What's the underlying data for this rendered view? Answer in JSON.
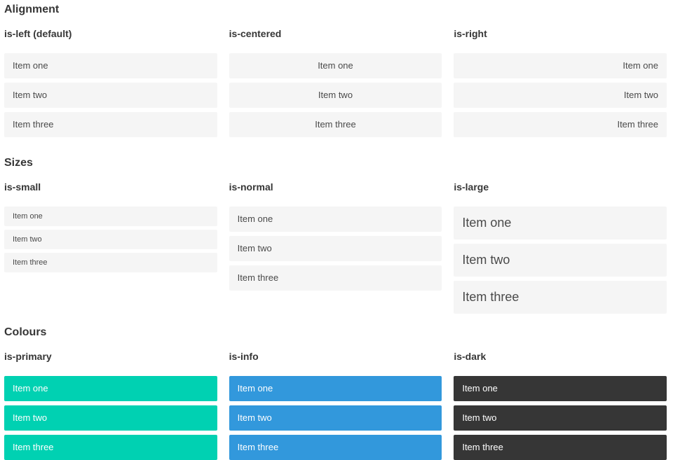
{
  "sections": [
    {
      "title": "Alignment",
      "columns": [
        {
          "heading": "is-left (default)",
          "items": [
            "Item one",
            "Item two",
            "Item three"
          ]
        },
        {
          "heading": "is-centered",
          "items": [
            "Item one",
            "Item two",
            "Item three"
          ]
        },
        {
          "heading": "is-right",
          "items": [
            "Item one",
            "Item two",
            "Item three"
          ]
        }
      ]
    },
    {
      "title": "Sizes",
      "columns": [
        {
          "heading": "is-small",
          "items": [
            "Item one",
            "Item two",
            "Item three"
          ]
        },
        {
          "heading": "is-normal",
          "items": [
            "Item one",
            "Item two",
            "Item three"
          ]
        },
        {
          "heading": "is-large",
          "items": [
            "Item one",
            "Item two",
            "Item three"
          ]
        }
      ]
    },
    {
      "title": "Colours",
      "columns": [
        {
          "heading": "is-primary",
          "items": [
            "Item one",
            "Item two",
            "Item three"
          ]
        },
        {
          "heading": "is-info",
          "items": [
            "Item one",
            "Item two",
            "Item three"
          ]
        },
        {
          "heading": "is-dark",
          "items": [
            "Item one",
            "Item two",
            "Item three"
          ]
        }
      ]
    }
  ],
  "colors": {
    "primary": "#00d1b2",
    "info": "#3298dc",
    "dark": "#363636",
    "item_background": "#f5f5f5",
    "item_text": "#4a4a4a",
    "heading_text": "#363636",
    "colored_item_text": "#ffffff"
  }
}
